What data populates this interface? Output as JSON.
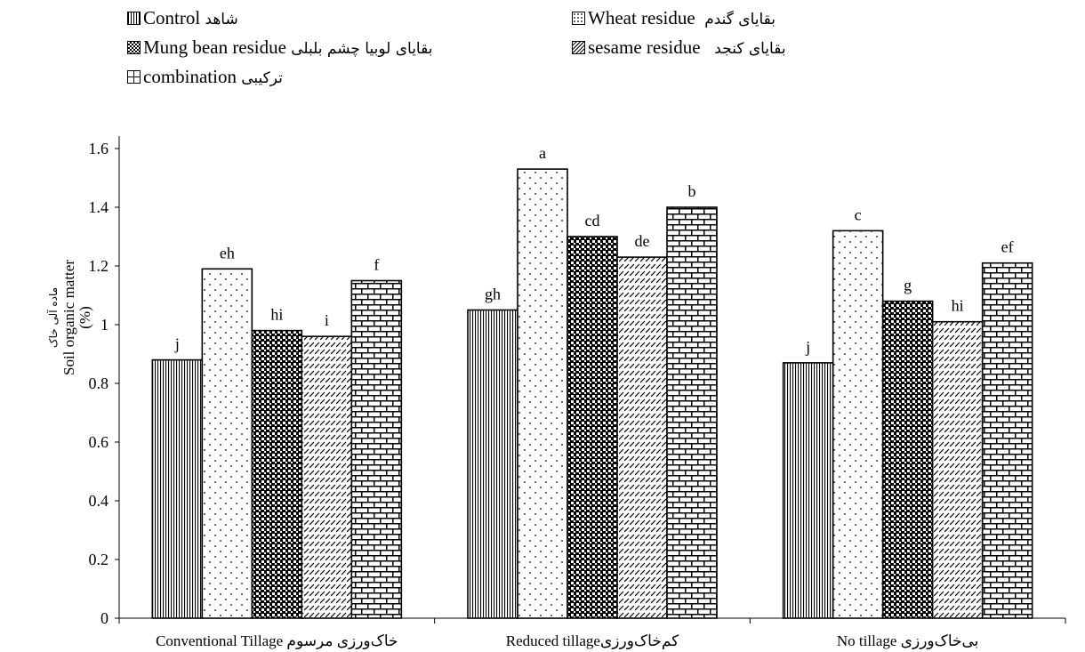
{
  "chart_data": {
    "type": "bar",
    "categories": [
      "Conventional Tillage خاک‌ورزی مرسوم",
      "Reduced tillageکم‌خاک‌ورزی",
      "No tillage بی‌خاک‌ورزی"
    ],
    "series": [
      {
        "name_fa": "شاهد",
        "name": "Control",
        "pattern": "vertical-lines",
        "values": [
          0.88,
          1.05,
          0.87
        ],
        "letters": [
          "j",
          "gh",
          "j"
        ]
      },
      {
        "name_fa": "بقایای گندم",
        "name": "Wheat residue",
        "pattern": "dots",
        "values": [
          1.19,
          1.53,
          1.32
        ],
        "letters": [
          "eh",
          "a",
          "c"
        ]
      },
      {
        "name_fa": "بقایای لوبیا چشم بلبلی",
        "name": "Mung bean residue",
        "pattern": "checker",
        "values": [
          0.98,
          1.3,
          1.08
        ],
        "letters": [
          "hi",
          "cd",
          "g"
        ]
      },
      {
        "name_fa": "بقایای کنجد",
        "name": "sesame residue",
        "pattern": "diagonal-dashes",
        "values": [
          0.96,
          1.23,
          1.01
        ],
        "letters": [
          "i",
          "de",
          "hi"
        ]
      },
      {
        "name_fa": "ترکیبی",
        "name": "combination",
        "pattern": "bricks",
        "values": [
          1.15,
          1.4,
          1.21
        ],
        "letters": [
          "f",
          "b",
          "ef"
        ]
      }
    ],
    "ylabel": "Soil organic matter",
    "ylabel_unit": "(%)",
    "ylabel_fa": "ماده آلی خاک",
    "ylim": [
      0,
      1.6
    ],
    "yticks": [
      "0",
      "0.2",
      "0.4",
      "0.6",
      "0.8",
      "1",
      "1.2",
      "1.4",
      "1.6"
    ],
    "grid": false,
    "legend_position": "top"
  }
}
